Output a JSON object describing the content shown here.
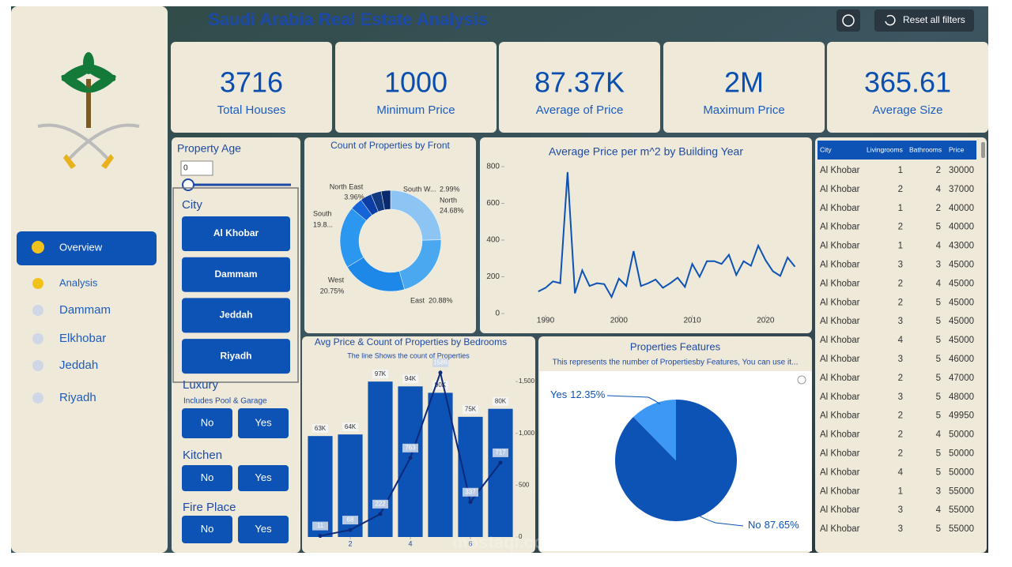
{
  "header": {
    "title": "Saudi Arabia Real Estate Analysis",
    "reset": "Reset all filters"
  },
  "kpis": [
    {
      "value": "3716",
      "label": "Total Houses"
    },
    {
      "value": "1000",
      "label": "Minimum Price"
    },
    {
      "value": "87.37K",
      "label": "Average of Price"
    },
    {
      "value": "2M",
      "label": "Maximum Price"
    },
    {
      "value": "365.61",
      "label": "Average Size"
    }
  ],
  "nav": {
    "active": "Overview",
    "items": [
      "Analysis",
      "Dammam",
      "Elkhobar",
      "Jeddah",
      "Riyadh"
    ]
  },
  "filters": {
    "property_age": {
      "title": "Property Age",
      "from": "0"
    },
    "city": {
      "title": "City",
      "options": [
        "Al Khobar",
        "Dammam",
        "Jeddah",
        "Riyadh"
      ]
    },
    "luxury": {
      "title": "Luxury",
      "subtitle": "Includes Pool & Garage",
      "options": [
        "No",
        "Yes"
      ]
    },
    "kitchen": {
      "title": "Kitchen",
      "options": [
        "No",
        "Yes"
      ]
    },
    "fire_place": {
      "title": "Fire Place",
      "options": [
        "No",
        "Yes"
      ]
    }
  },
  "chart_data": [
    {
      "type": "donut",
      "title": "Count of Properties by Front",
      "categories": [
        "North",
        "East",
        "West",
        "South",
        "North East",
        null,
        null,
        "South W..."
      ],
      "values": [
        24.68,
        20.88,
        20.75,
        19.8,
        3.96,
        3.6,
        3.34,
        2.99
      ],
      "value_labels": [
        "24.68%",
        "20.88%",
        "20.75%",
        "19.8...",
        "3.96%",
        null,
        null,
        "2.99%"
      ],
      "colors": [
        "#8cc4f4",
        "#4aa8f0",
        "#1e88e8",
        "#2c97ee",
        "#1565d8",
        "#0c3fa6",
        "#123a80",
        "#0a2a6e"
      ]
    },
    {
      "type": "line",
      "title": "Average Price per m^2 by Building Year",
      "x": [
        1989,
        1990,
        1991,
        1992,
        1993,
        1994,
        1995,
        1996,
        1997,
        1998,
        1999,
        2000,
        2001,
        2002,
        2003,
        2004,
        2005,
        2006,
        2007,
        2008,
        2009,
        2010,
        2011,
        2012,
        2013,
        2014,
        2015,
        2016,
        2017,
        2018,
        2019,
        2020,
        2021,
        2022,
        2023,
        2024
      ],
      "values": [
        120,
        140,
        175,
        165,
        770,
        110,
        235,
        150,
        165,
        160,
        90,
        190,
        150,
        340,
        150,
        165,
        185,
        140,
        165,
        195,
        145,
        270,
        200,
        285,
        285,
        270,
        320,
        210,
        285,
        260,
        370,
        290,
        230,
        205,
        305,
        255
      ],
      "color": "#0d52b5",
      "xlim": [
        1988,
        2026
      ],
      "xticks": [
        1990,
        2000,
        2010,
        2020
      ],
      "ylim": [
        0,
        850
      ],
      "yticks": [
        0,
        200,
        400,
        600,
        800
      ]
    },
    {
      "type": "combo",
      "title": "Avg Price & Count of Properties by Bedrooms",
      "subtitle": "The line Shows the count of Properties",
      "x": [
        1,
        2,
        3,
        4,
        5,
        6,
        7
      ],
      "xticks": [
        2,
        4,
        6
      ],
      "xlim": [
        0.5,
        7.5
      ],
      "series": [
        {
          "type": "bar",
          "color": "#0d52b5",
          "values": [
            63000,
            64000,
            97000,
            94000,
            90000,
            75000,
            80000
          ],
          "value_labels": [
            "63K",
            "64K",
            "97K",
            "94K",
            "90K",
            "75K",
            "80K"
          ]
        },
        {
          "type": "line",
          "axis": "y2",
          "color": "#0b2a7a",
          "values": [
            11,
            68,
            222,
            763,
            1586,
            337,
            717
          ]
        }
      ],
      "ylim": [
        0,
        103500
      ],
      "y2lim": [
        0,
        1600
      ],
      "y2ticks": [
        0,
        500,
        {
          "value": 1000,
          "label": "1,000"
        },
        {
          "value": 1500,
          "label": "1,500"
        }
      ]
    },
    {
      "type": "pie",
      "title": "Properties Features",
      "subtitle": "This represents the number of Propertiesby Features, You can use it...",
      "categories": [
        "No",
        "Yes"
      ],
      "values": [
        87.65,
        12.35
      ],
      "value_labels": [
        "87.65%",
        "12.35%"
      ],
      "colors": [
        "#0d52b5",
        "#3d98f5"
      ]
    }
  ],
  "table": {
    "columns": [
      "City",
      "Livingrooms",
      "Bathrooms",
      "Price"
    ],
    "rows": [
      [
        "Al Khobar",
        1,
        2,
        30000
      ],
      [
        "Al Khobar",
        2,
        4,
        37000
      ],
      [
        "Al Khobar",
        1,
        2,
        40000
      ],
      [
        "Al Khobar",
        2,
        5,
        40000
      ],
      [
        "Al Khobar",
        1,
        4,
        43000
      ],
      [
        "Al Khobar",
        3,
        3,
        45000
      ],
      [
        "Al Khobar",
        2,
        4,
        45000
      ],
      [
        "Al Khobar",
        2,
        5,
        45000
      ],
      [
        "Al Khobar",
        3,
        5,
        45000
      ],
      [
        "Al Khobar",
        4,
        5,
        45000
      ],
      [
        "Al Khobar",
        3,
        5,
        46000
      ],
      [
        "Al Khobar",
        2,
        5,
        47000
      ],
      [
        "Al Khobar",
        3,
        5,
        48000
      ],
      [
        "Al Khobar",
        2,
        5,
        49950
      ],
      [
        "Al Khobar",
        2,
        4,
        50000
      ],
      [
        "Al Khobar",
        2,
        5,
        50000
      ],
      [
        "Al Khobar",
        4,
        5,
        50000
      ],
      [
        "Al Khobar",
        1,
        3,
        55000
      ],
      [
        "Al Khobar",
        3,
        4,
        55000
      ],
      [
        "Al Khobar",
        3,
        5,
        55000
      ]
    ]
  },
  "watermark": "mostaql.com"
}
